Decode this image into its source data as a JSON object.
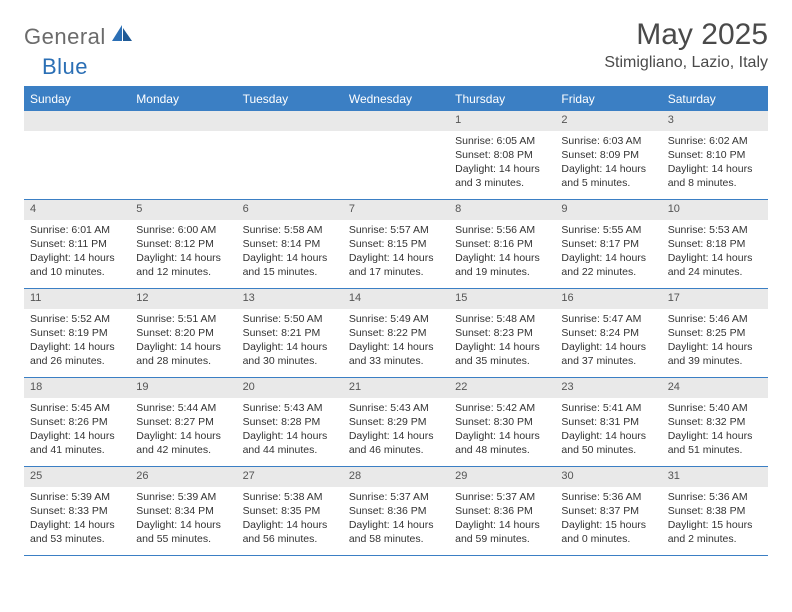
{
  "brand": {
    "general": "General",
    "blue": "Blue"
  },
  "title": "May 2025",
  "location": "Stimigliano, Lazio, Italy",
  "colors": {
    "header_bg": "#3b7fc4",
    "header_text": "#ffffff",
    "daynum_bg": "#e9e9e9",
    "body_text": "#333333",
    "rule": "#3b7fc4"
  },
  "day_names": [
    "Sunday",
    "Monday",
    "Tuesday",
    "Wednesday",
    "Thursday",
    "Friday",
    "Saturday"
  ],
  "weeks": [
    [
      null,
      null,
      null,
      null,
      {
        "n": "1",
        "sr": "6:05 AM",
        "ss": "8:08 PM",
        "dl": "14 hours and 3 minutes."
      },
      {
        "n": "2",
        "sr": "6:03 AM",
        "ss": "8:09 PM",
        "dl": "14 hours and 5 minutes."
      },
      {
        "n": "3",
        "sr": "6:02 AM",
        "ss": "8:10 PM",
        "dl": "14 hours and 8 minutes."
      }
    ],
    [
      {
        "n": "4",
        "sr": "6:01 AM",
        "ss": "8:11 PM",
        "dl": "14 hours and 10 minutes."
      },
      {
        "n": "5",
        "sr": "6:00 AM",
        "ss": "8:12 PM",
        "dl": "14 hours and 12 minutes."
      },
      {
        "n": "6",
        "sr": "5:58 AM",
        "ss": "8:14 PM",
        "dl": "14 hours and 15 minutes."
      },
      {
        "n": "7",
        "sr": "5:57 AM",
        "ss": "8:15 PM",
        "dl": "14 hours and 17 minutes."
      },
      {
        "n": "8",
        "sr": "5:56 AM",
        "ss": "8:16 PM",
        "dl": "14 hours and 19 minutes."
      },
      {
        "n": "9",
        "sr": "5:55 AM",
        "ss": "8:17 PM",
        "dl": "14 hours and 22 minutes."
      },
      {
        "n": "10",
        "sr": "5:53 AM",
        "ss": "8:18 PM",
        "dl": "14 hours and 24 minutes."
      }
    ],
    [
      {
        "n": "11",
        "sr": "5:52 AM",
        "ss": "8:19 PM",
        "dl": "14 hours and 26 minutes."
      },
      {
        "n": "12",
        "sr": "5:51 AM",
        "ss": "8:20 PM",
        "dl": "14 hours and 28 minutes."
      },
      {
        "n": "13",
        "sr": "5:50 AM",
        "ss": "8:21 PM",
        "dl": "14 hours and 30 minutes."
      },
      {
        "n": "14",
        "sr": "5:49 AM",
        "ss": "8:22 PM",
        "dl": "14 hours and 33 minutes."
      },
      {
        "n": "15",
        "sr": "5:48 AM",
        "ss": "8:23 PM",
        "dl": "14 hours and 35 minutes."
      },
      {
        "n": "16",
        "sr": "5:47 AM",
        "ss": "8:24 PM",
        "dl": "14 hours and 37 minutes."
      },
      {
        "n": "17",
        "sr": "5:46 AM",
        "ss": "8:25 PM",
        "dl": "14 hours and 39 minutes."
      }
    ],
    [
      {
        "n": "18",
        "sr": "5:45 AM",
        "ss": "8:26 PM",
        "dl": "14 hours and 41 minutes."
      },
      {
        "n": "19",
        "sr": "5:44 AM",
        "ss": "8:27 PM",
        "dl": "14 hours and 42 minutes."
      },
      {
        "n": "20",
        "sr": "5:43 AM",
        "ss": "8:28 PM",
        "dl": "14 hours and 44 minutes."
      },
      {
        "n": "21",
        "sr": "5:43 AM",
        "ss": "8:29 PM",
        "dl": "14 hours and 46 minutes."
      },
      {
        "n": "22",
        "sr": "5:42 AM",
        "ss": "8:30 PM",
        "dl": "14 hours and 48 minutes."
      },
      {
        "n": "23",
        "sr": "5:41 AM",
        "ss": "8:31 PM",
        "dl": "14 hours and 50 minutes."
      },
      {
        "n": "24",
        "sr": "5:40 AM",
        "ss": "8:32 PM",
        "dl": "14 hours and 51 minutes."
      }
    ],
    [
      {
        "n": "25",
        "sr": "5:39 AM",
        "ss": "8:33 PM",
        "dl": "14 hours and 53 minutes."
      },
      {
        "n": "26",
        "sr": "5:39 AM",
        "ss": "8:34 PM",
        "dl": "14 hours and 55 minutes."
      },
      {
        "n": "27",
        "sr": "5:38 AM",
        "ss": "8:35 PM",
        "dl": "14 hours and 56 minutes."
      },
      {
        "n": "28",
        "sr": "5:37 AM",
        "ss": "8:36 PM",
        "dl": "14 hours and 58 minutes."
      },
      {
        "n": "29",
        "sr": "5:37 AM",
        "ss": "8:36 PM",
        "dl": "14 hours and 59 minutes."
      },
      {
        "n": "30",
        "sr": "5:36 AM",
        "ss": "8:37 PM",
        "dl": "15 hours and 0 minutes."
      },
      {
        "n": "31",
        "sr": "5:36 AM",
        "ss": "8:38 PM",
        "dl": "15 hours and 2 minutes."
      }
    ]
  ],
  "labels": {
    "sunrise": "Sunrise:",
    "sunset": "Sunset:",
    "daylight": "Daylight:"
  }
}
